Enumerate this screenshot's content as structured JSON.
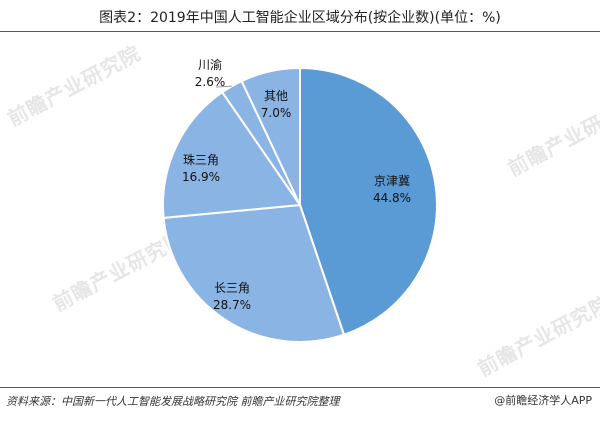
{
  "header": {
    "title": "图表2：2019年中国人工智能企业区域分布(按企业数)(单位：%)"
  },
  "footer": {
    "source": "资料来源：中国新一代人工智能发展战略研究院 前瞻产业研究院整理",
    "brand": "@前瞻经济学人APP"
  },
  "watermark": "前瞻产业研究院",
  "colors": {
    "slice_fill": "#5b9bd5",
    "slice_fill_light": "#8ab4e3",
    "slice_border": "#ffffff"
  },
  "chart_data": {
    "type": "pie",
    "title": "图表2：2019年中国人工智能企业区域分布(按企业数)(单位：%)",
    "unit": "%",
    "slices": [
      {
        "label": "京津冀",
        "value": 44.8,
        "display": "44.8%"
      },
      {
        "label": "长三角",
        "value": 28.7,
        "display": "28.7%"
      },
      {
        "label": "珠三角",
        "value": 16.9,
        "display": "16.9%"
      },
      {
        "label": "川渝",
        "value": 2.6,
        "display": "2.6%"
      },
      {
        "label": "其他",
        "value": 7.0,
        "display": "7.0%"
      }
    ],
    "start": "12 o'clock",
    "direction": "clockwise",
    "legend": "none"
  }
}
